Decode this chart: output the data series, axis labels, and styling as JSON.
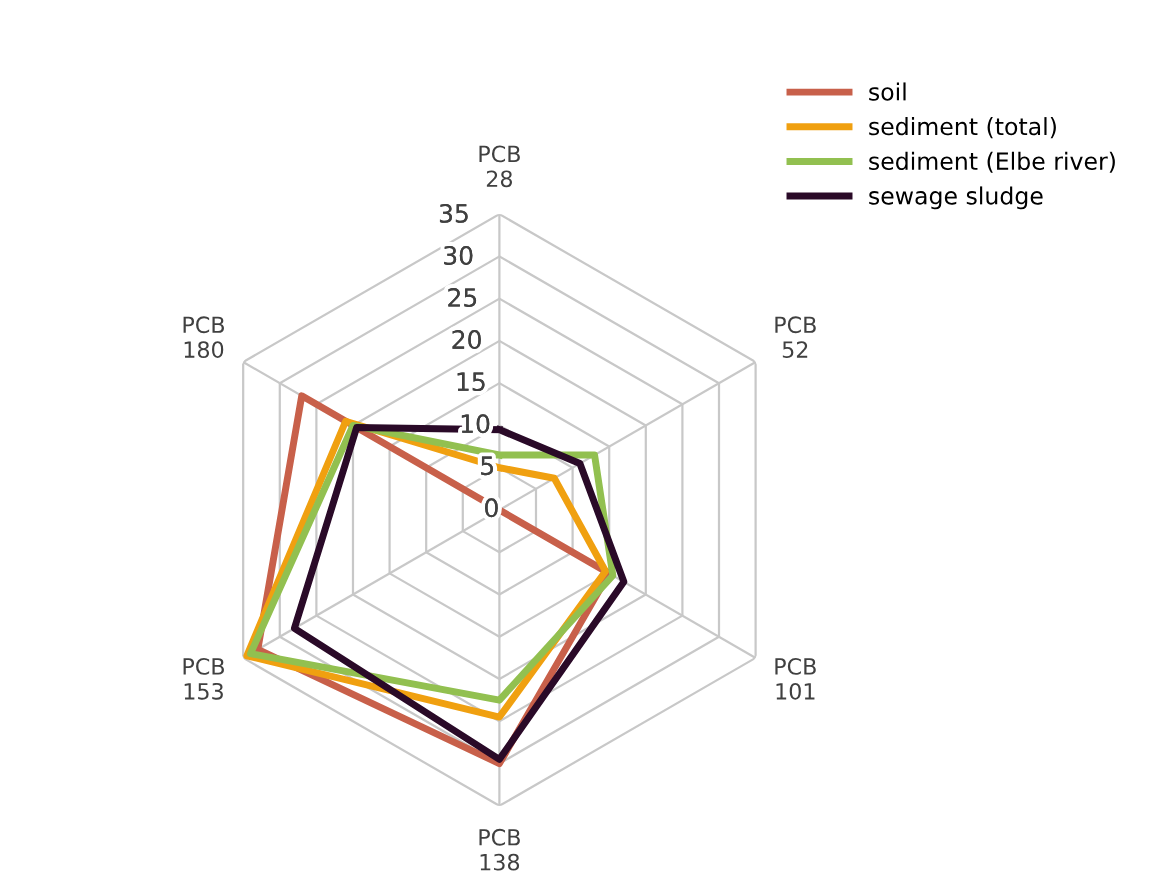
{
  "chart_data": {
    "type": "radar",
    "categories": [
      "PCB\n28",
      "PCB\n52",
      "PCB\n101",
      "PCB\n138",
      "PCB\n153",
      "PCB\n180"
    ],
    "series": [
      {
        "name": "soil",
        "color": "#c8604a",
        "values": [
          0,
          0,
          15,
          30,
          33,
          27
        ]
      },
      {
        "name": "sediment (total)",
        "color": "#f0a010",
        "values": [
          5,
          7.5,
          14.5,
          24.5,
          34.5,
          21
        ]
      },
      {
        "name": "sediment (Elbe river)",
        "color": "#92c050",
        "values": [
          6.5,
          13,
          15.5,
          22.5,
          34,
          20
        ]
      },
      {
        "name": "sewage sludge",
        "color": "#2a0a28",
        "values": [
          9.5,
          11,
          17,
          29.5,
          28,
          19.5
        ]
      }
    ],
    "ylim": [
      0,
      35
    ],
    "yticks": [
      0,
      5,
      10,
      15,
      20,
      25,
      30,
      35
    ],
    "grid": true,
    "legend": "top right",
    "line_style": "solid",
    "marker": "none"
  }
}
